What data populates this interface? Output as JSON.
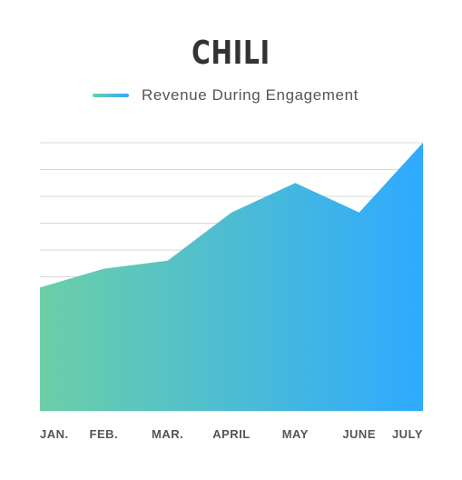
{
  "colors": {
    "gradient_start": "#6ccfa7",
    "gradient_end": "#2eaaff",
    "grid": "#d9d9d9",
    "text": "#555555"
  },
  "chart_data": {
    "type": "area",
    "title": "CHILI",
    "categories": [
      "JAN.",
      "FEB.",
      "MAR.",
      "APRIL",
      "MAY",
      "JUNE",
      "JULY"
    ],
    "series": [
      {
        "name": "Revenue During Engagement",
        "values": [
          4.6,
          5.3,
          5.6,
          7.4,
          8.5,
          7.4,
          10.0
        ]
      }
    ],
    "ylim": [
      0,
      10
    ],
    "grid": true,
    "legend": "top-center",
    "xlabel": "",
    "ylabel": ""
  }
}
